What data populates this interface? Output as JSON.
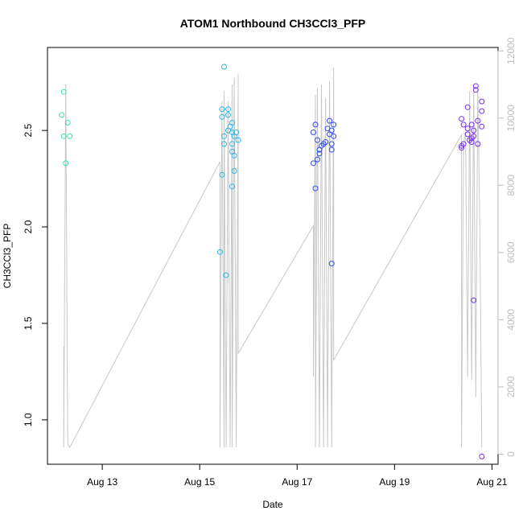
{
  "chart_data": {
    "type": "scatter",
    "title": "ATOM1 Northbound CH3CCl3_PFP",
    "xlabel": "Date",
    "ylabel": "CH3CCl3_PFP",
    "x_ticks": [
      "Aug 13",
      "Aug 15",
      "Aug 17",
      "Aug 19",
      "Aug 21"
    ],
    "y_ticks": [
      "1.0",
      "1.5",
      "2.0",
      "2.5"
    ],
    "y2_ticks": [
      "0",
      "2000",
      "4000",
      "6000",
      "8000",
      "10000",
      "12000"
    ],
    "grid": false,
    "colors": {
      "points_early": "#35e0b0",
      "points_mid": "#2ab5e8",
      "points_late": "#2f4fe8",
      "points_last": "#7a2fe8",
      "altitude_line": "#c8c8c8",
      "secondary_axis": "#bdbdbd"
    },
    "series": [
      {
        "kind": "points",
        "color": "#35e0b0",
        "points": [
          {
            "x": "2016-08-12T05:00",
            "y": 2.7
          },
          {
            "x": "2016-08-12T04:00",
            "y": 2.58
          },
          {
            "x": "2016-08-12T05:00",
            "y": 2.47
          },
          {
            "x": "2016-08-12T07:00",
            "y": 2.54
          },
          {
            "x": "2016-08-12T08:00",
            "y": 2.47
          },
          {
            "x": "2016-08-12T06:00",
            "y": 2.33
          }
        ]
      },
      {
        "kind": "points",
        "color": "#2ab5e8",
        "points": [
          {
            "x": "2016-08-15T12:00",
            "y": 2.83
          },
          {
            "x": "2016-08-15T11:00",
            "y": 2.61
          },
          {
            "x": "2016-08-15T14:00",
            "y": 2.61
          },
          {
            "x": "2016-08-15T11:00",
            "y": 2.57
          },
          {
            "x": "2016-08-15T14:00",
            "y": 2.58
          },
          {
            "x": "2016-08-15T16:00",
            "y": 2.54
          },
          {
            "x": "2016-08-15T15:00",
            "y": 2.52
          },
          {
            "x": "2016-08-15T14:00",
            "y": 2.5
          },
          {
            "x": "2016-08-15T16:00",
            "y": 2.49
          },
          {
            "x": "2016-08-15T18:00",
            "y": 2.49
          },
          {
            "x": "2016-08-15T17:00",
            "y": 2.47
          },
          {
            "x": "2016-08-15T12:00",
            "y": 2.47
          },
          {
            "x": "2016-08-15T19:00",
            "y": 2.45
          },
          {
            "x": "2016-08-15T16:00",
            "y": 2.43
          },
          {
            "x": "2016-08-15T12:00",
            "y": 2.43
          },
          {
            "x": "2016-08-15T16:00",
            "y": 2.39
          },
          {
            "x": "2016-08-15T17:00",
            "y": 2.37
          },
          {
            "x": "2016-08-15T17:00",
            "y": 2.29
          },
          {
            "x": "2016-08-15T11:00",
            "y": 2.27
          },
          {
            "x": "2016-08-15T16:00",
            "y": 2.21
          },
          {
            "x": "2016-08-15T10:00",
            "y": 1.87
          },
          {
            "x": "2016-08-15T13:00",
            "y": 1.75
          }
        ]
      },
      {
        "kind": "points",
        "color": "#2f4fe8",
        "points": [
          {
            "x": "2016-08-17T16:00",
            "y": 2.55
          },
          {
            "x": "2016-08-17T09:00",
            "y": 2.53
          },
          {
            "x": "2016-08-17T18:00",
            "y": 2.53
          },
          {
            "x": "2016-08-17T15:00",
            "y": 2.51
          },
          {
            "x": "2016-08-17T17:00",
            "y": 2.5
          },
          {
            "x": "2016-08-17T08:00",
            "y": 2.49
          },
          {
            "x": "2016-08-17T16:00",
            "y": 2.48
          },
          {
            "x": "2016-08-17T18:00",
            "y": 2.47
          },
          {
            "x": "2016-08-17T10:00",
            "y": 2.45
          },
          {
            "x": "2016-08-17T14:00",
            "y": 2.44
          },
          {
            "x": "2016-08-17T13:00",
            "y": 2.43
          },
          {
            "x": "2016-08-17T17:00",
            "y": 2.43
          },
          {
            "x": "2016-08-17T12:00",
            "y": 2.42
          },
          {
            "x": "2016-08-17T11:00",
            "y": 2.4
          },
          {
            "x": "2016-08-17T17:00",
            "y": 2.4
          },
          {
            "x": "2016-08-17T11:00",
            "y": 2.38
          },
          {
            "x": "2016-08-17T10:00",
            "y": 2.35
          },
          {
            "x": "2016-08-17T08:00",
            "y": 2.33
          },
          {
            "x": "2016-08-17T09:00",
            "y": 2.2
          },
          {
            "x": "2016-08-17T17:00",
            "y": 1.81
          }
        ]
      },
      {
        "kind": "points",
        "color": "#7a2fe8",
        "points": [
          {
            "x": "2016-08-20T16:00",
            "y": 2.73
          },
          {
            "x": "2016-08-20T16:00",
            "y": 2.71
          },
          {
            "x": "2016-08-20T19:00",
            "y": 2.65
          },
          {
            "x": "2016-08-20T12:00",
            "y": 2.62
          },
          {
            "x": "2016-08-20T19:00",
            "y": 2.6
          },
          {
            "x": "2016-08-20T09:00",
            "y": 2.56
          },
          {
            "x": "2016-08-20T17:00",
            "y": 2.55
          },
          {
            "x": "2016-08-20T10:00",
            "y": 2.53
          },
          {
            "x": "2016-08-20T14:00",
            "y": 2.53
          },
          {
            "x": "2016-08-20T19:00",
            "y": 2.52
          },
          {
            "x": "2016-08-20T12:00",
            "y": 2.51
          },
          {
            "x": "2016-08-20T15:00",
            "y": 2.5
          },
          {
            "x": "2016-08-20T12:00",
            "y": 2.48
          },
          {
            "x": "2016-08-20T15:00",
            "y": 2.47
          },
          {
            "x": "2016-08-20T14:00",
            "y": 2.46
          },
          {
            "x": "2016-08-20T13:00",
            "y": 2.45
          },
          {
            "x": "2016-08-20T14:00",
            "y": 2.44
          },
          {
            "x": "2016-08-20T10:00",
            "y": 2.43
          },
          {
            "x": "2016-08-20T17:00",
            "y": 2.43
          },
          {
            "x": "2016-08-20T09:00",
            "y": 2.42
          },
          {
            "x": "2016-08-20T09:00",
            "y": 2.41
          },
          {
            "x": "2016-08-20T15:00",
            "y": 1.62
          },
          {
            "x": "2016-08-20T19:00",
            "y": 0.81
          }
        ]
      },
      {
        "kind": "line",
        "axis": "secondary",
        "color": "#c8c8c8",
        "points": [
          {
            "x": "2016-08-12T05:00",
            "y": 3200
          },
          {
            "x": "2016-08-12T05:00",
            "y": 200
          },
          {
            "x": "2016-08-12T06:00",
            "y": 11000
          },
          {
            "x": "2016-08-12T07:00",
            "y": 300
          },
          {
            "x": "2016-08-12T08:00",
            "y": 200
          },
          {
            "x": "2016-08-15T10:00",
            "y": 8700
          },
          {
            "x": "2016-08-15T10:00",
            "y": 200
          },
          {
            "x": "2016-08-15T11:00",
            "y": 10500
          },
          {
            "x": "2016-08-15T12:00",
            "y": 200
          },
          {
            "x": "2016-08-15T12:00",
            "y": 10800
          },
          {
            "x": "2016-08-15T13:00",
            "y": 200
          },
          {
            "x": "2016-08-15T14:00",
            "y": 10500
          },
          {
            "x": "2016-08-15T15:00",
            "y": 200
          },
          {
            "x": "2016-08-15T16:00",
            "y": 11000
          },
          {
            "x": "2016-08-15T16:00",
            "y": 200
          },
          {
            "x": "2016-08-15T17:00",
            "y": 11200
          },
          {
            "x": "2016-08-15T18:00",
            "y": 200
          },
          {
            "x": "2016-08-15T19:00",
            "y": 11300
          },
          {
            "x": "2016-08-15T19:00",
            "y": 3000
          },
          {
            "x": "2016-08-17T08:00",
            "y": 6800
          },
          {
            "x": "2016-08-17T08:00",
            "y": 2300
          },
          {
            "x": "2016-08-17T09:00",
            "y": 10700
          },
          {
            "x": "2016-08-17T09:00",
            "y": 200
          },
          {
            "x": "2016-08-17T10:00",
            "y": 10900
          },
          {
            "x": "2016-08-17T11:00",
            "y": 200
          },
          {
            "x": "2016-08-17T12:00",
            "y": 11000
          },
          {
            "x": "2016-08-17T13:00",
            "y": 200
          },
          {
            "x": "2016-08-17T14:00",
            "y": 10600
          },
          {
            "x": "2016-08-17T15:00",
            "y": 200
          },
          {
            "x": "2016-08-17T16:00",
            "y": 11100
          },
          {
            "x": "2016-08-17T17:00",
            "y": 200
          },
          {
            "x": "2016-08-17T18:00",
            "y": 11500
          },
          {
            "x": "2016-08-17T18:00",
            "y": 2800
          },
          {
            "x": "2016-08-20T09:00",
            "y": 9500
          },
          {
            "x": "2016-08-20T09:00",
            "y": 200
          },
          {
            "x": "2016-08-20T10:00",
            "y": 9200
          },
          {
            "x": "2016-08-20T11:00",
            "y": 9600
          },
          {
            "x": "2016-08-20T12:00",
            "y": 2300
          },
          {
            "x": "2016-08-20T13:00",
            "y": 10800
          },
          {
            "x": "2016-08-20T14:00",
            "y": 2200
          },
          {
            "x": "2016-08-20T15:00",
            "y": 11000
          },
          {
            "x": "2016-08-20T16:00",
            "y": 1700
          },
          {
            "x": "2016-08-20T17:00",
            "y": 10900
          },
          {
            "x": "2016-08-20T18:00",
            "y": 6800
          },
          {
            "x": "2016-08-20T19:00",
            "y": 200
          }
        ]
      }
    ],
    "xlim": [
      "2016-08-11T21:00",
      "2016-08-21T03:00"
    ],
    "ylim": [
      0.77,
      2.93
    ],
    "y2lim": [
      -300,
      12100
    ]
  }
}
